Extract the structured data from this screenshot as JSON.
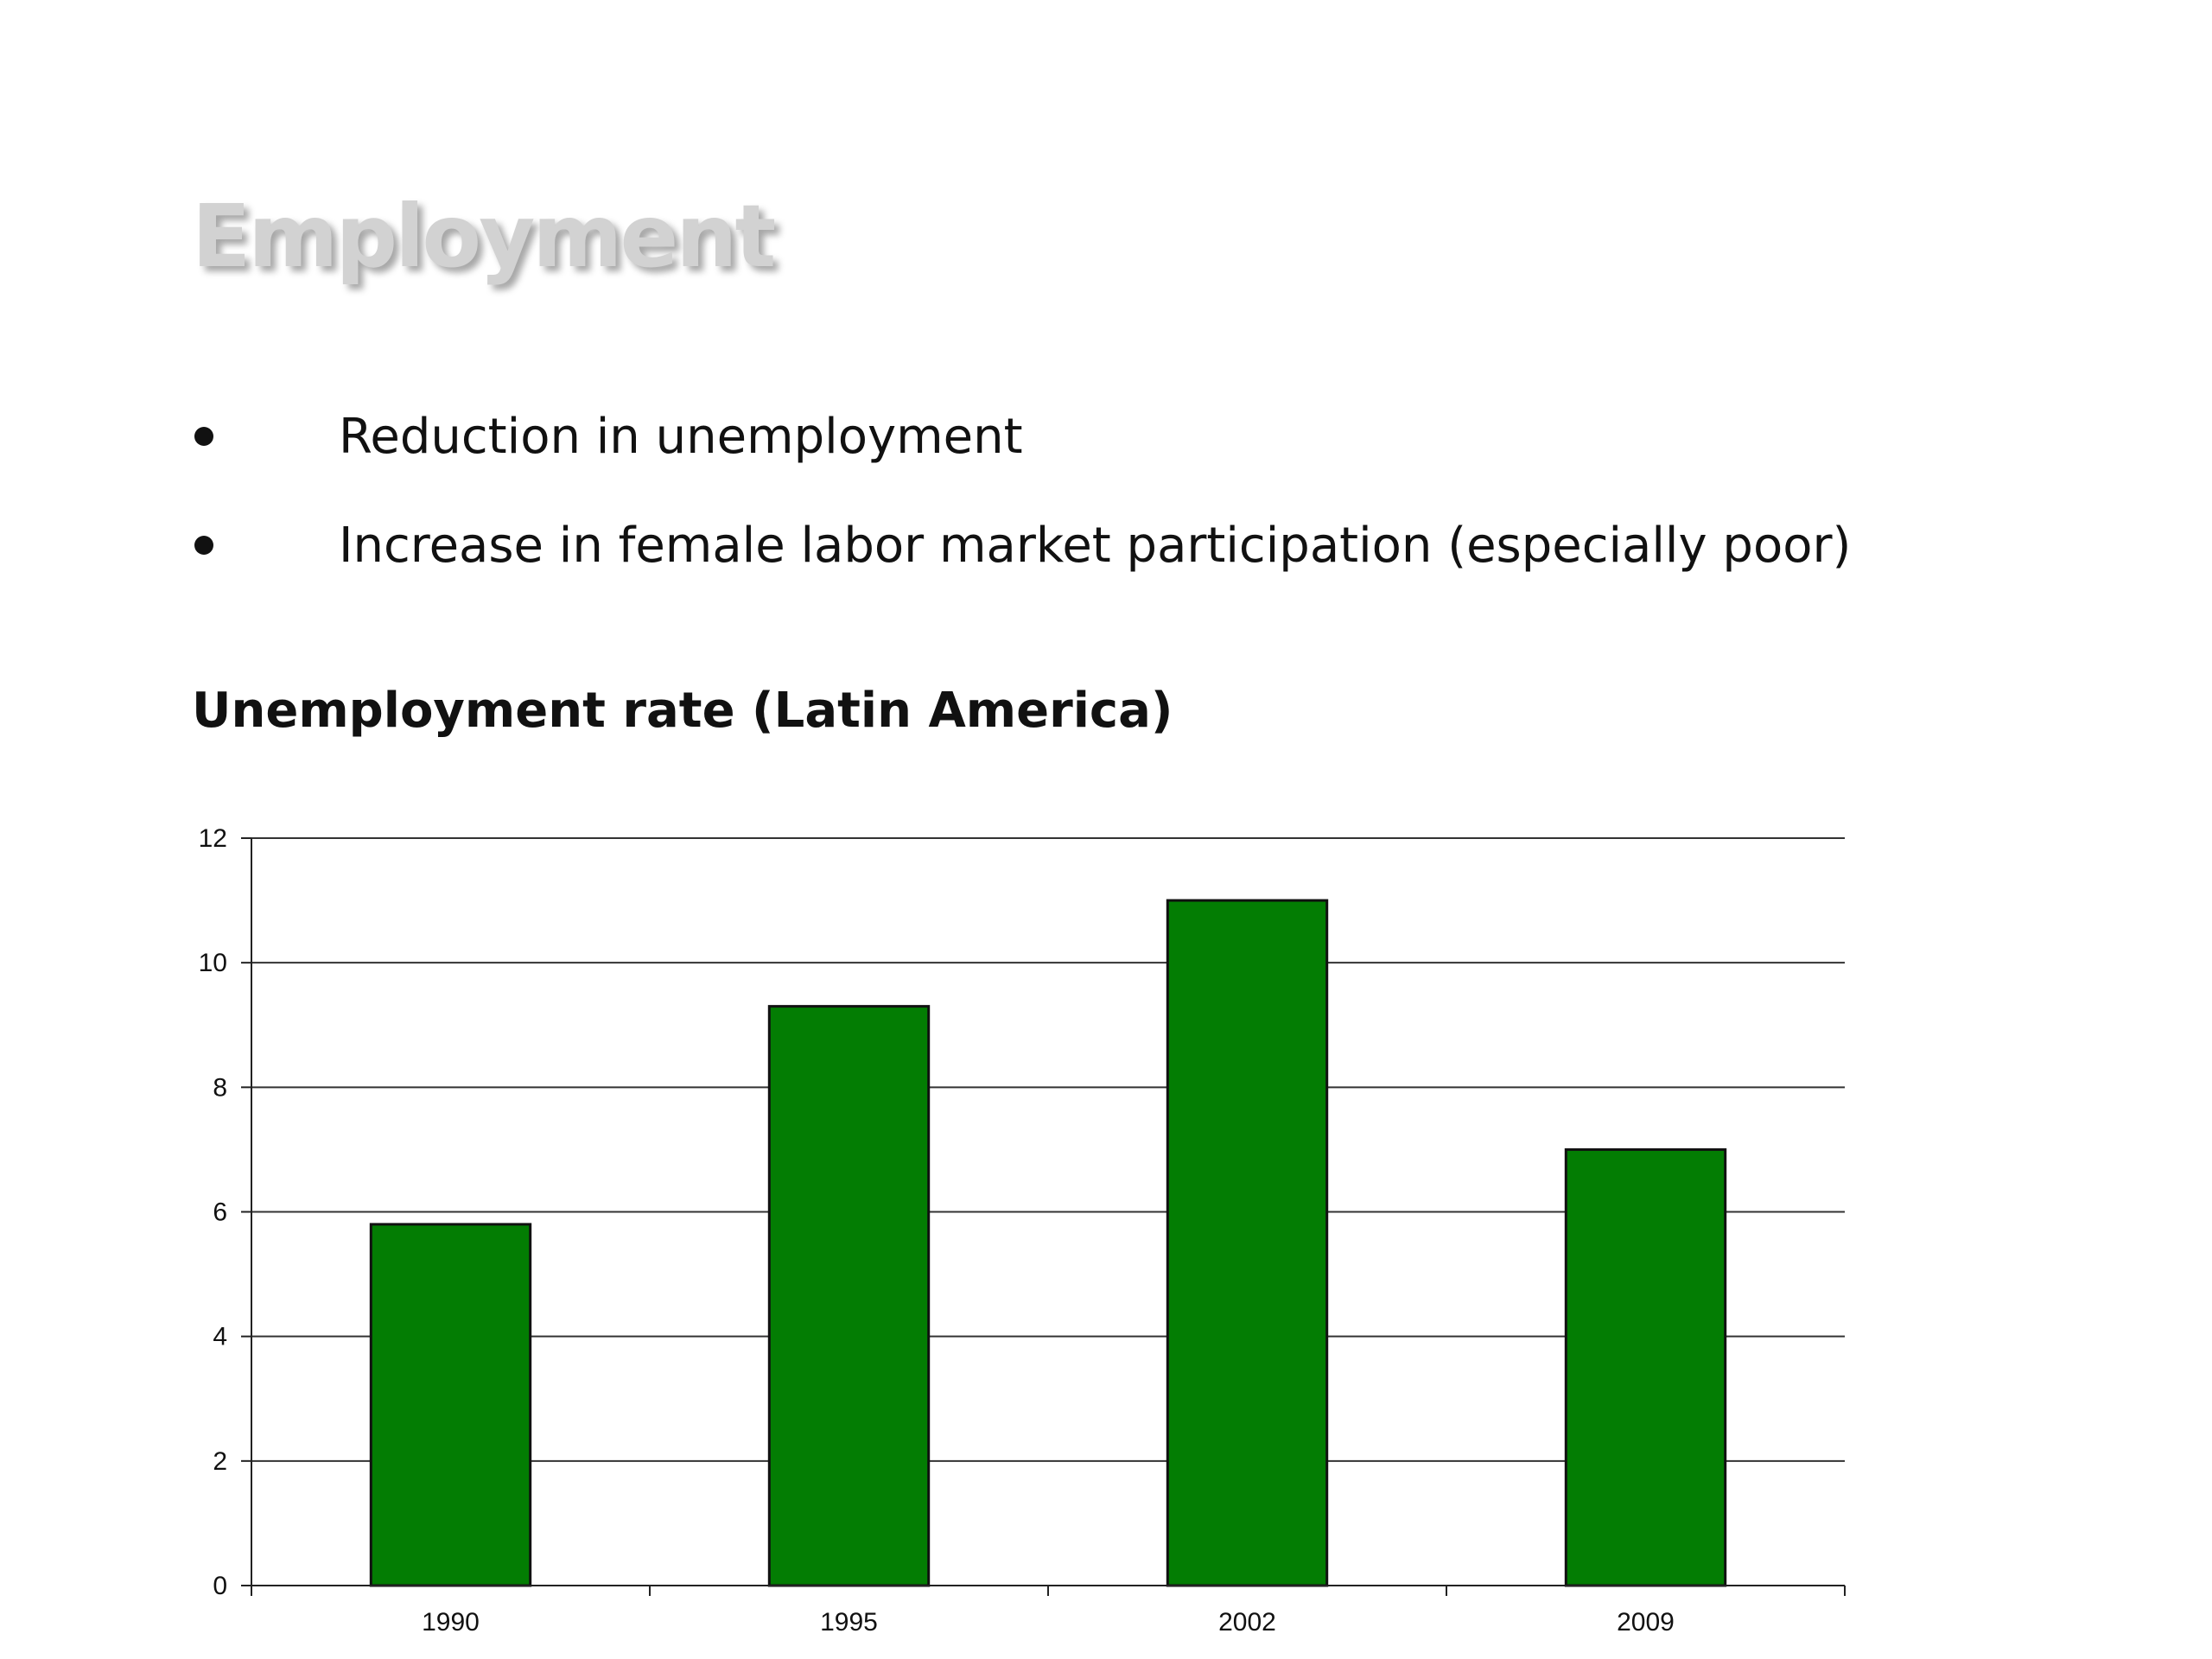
{
  "slide": {
    "title": "Employment",
    "bullets": [
      "Reduction in unemployment",
      "Increase in female labor market participation (especially poor)"
    ]
  },
  "chart_data": {
    "type": "bar",
    "title": "Unemployment rate (Latin America)",
    "categories": [
      "1990",
      "1995",
      "2002",
      "2009"
    ],
    "values": [
      5.8,
      9.3,
      11.0,
      7.0
    ],
    "xlabel": "",
    "ylabel": "",
    "ylim": [
      0,
      12
    ],
    "yticks": [
      0,
      2,
      4,
      6,
      8,
      10,
      12
    ],
    "grid": true,
    "bar_color": "#037d03",
    "legend": "none"
  }
}
